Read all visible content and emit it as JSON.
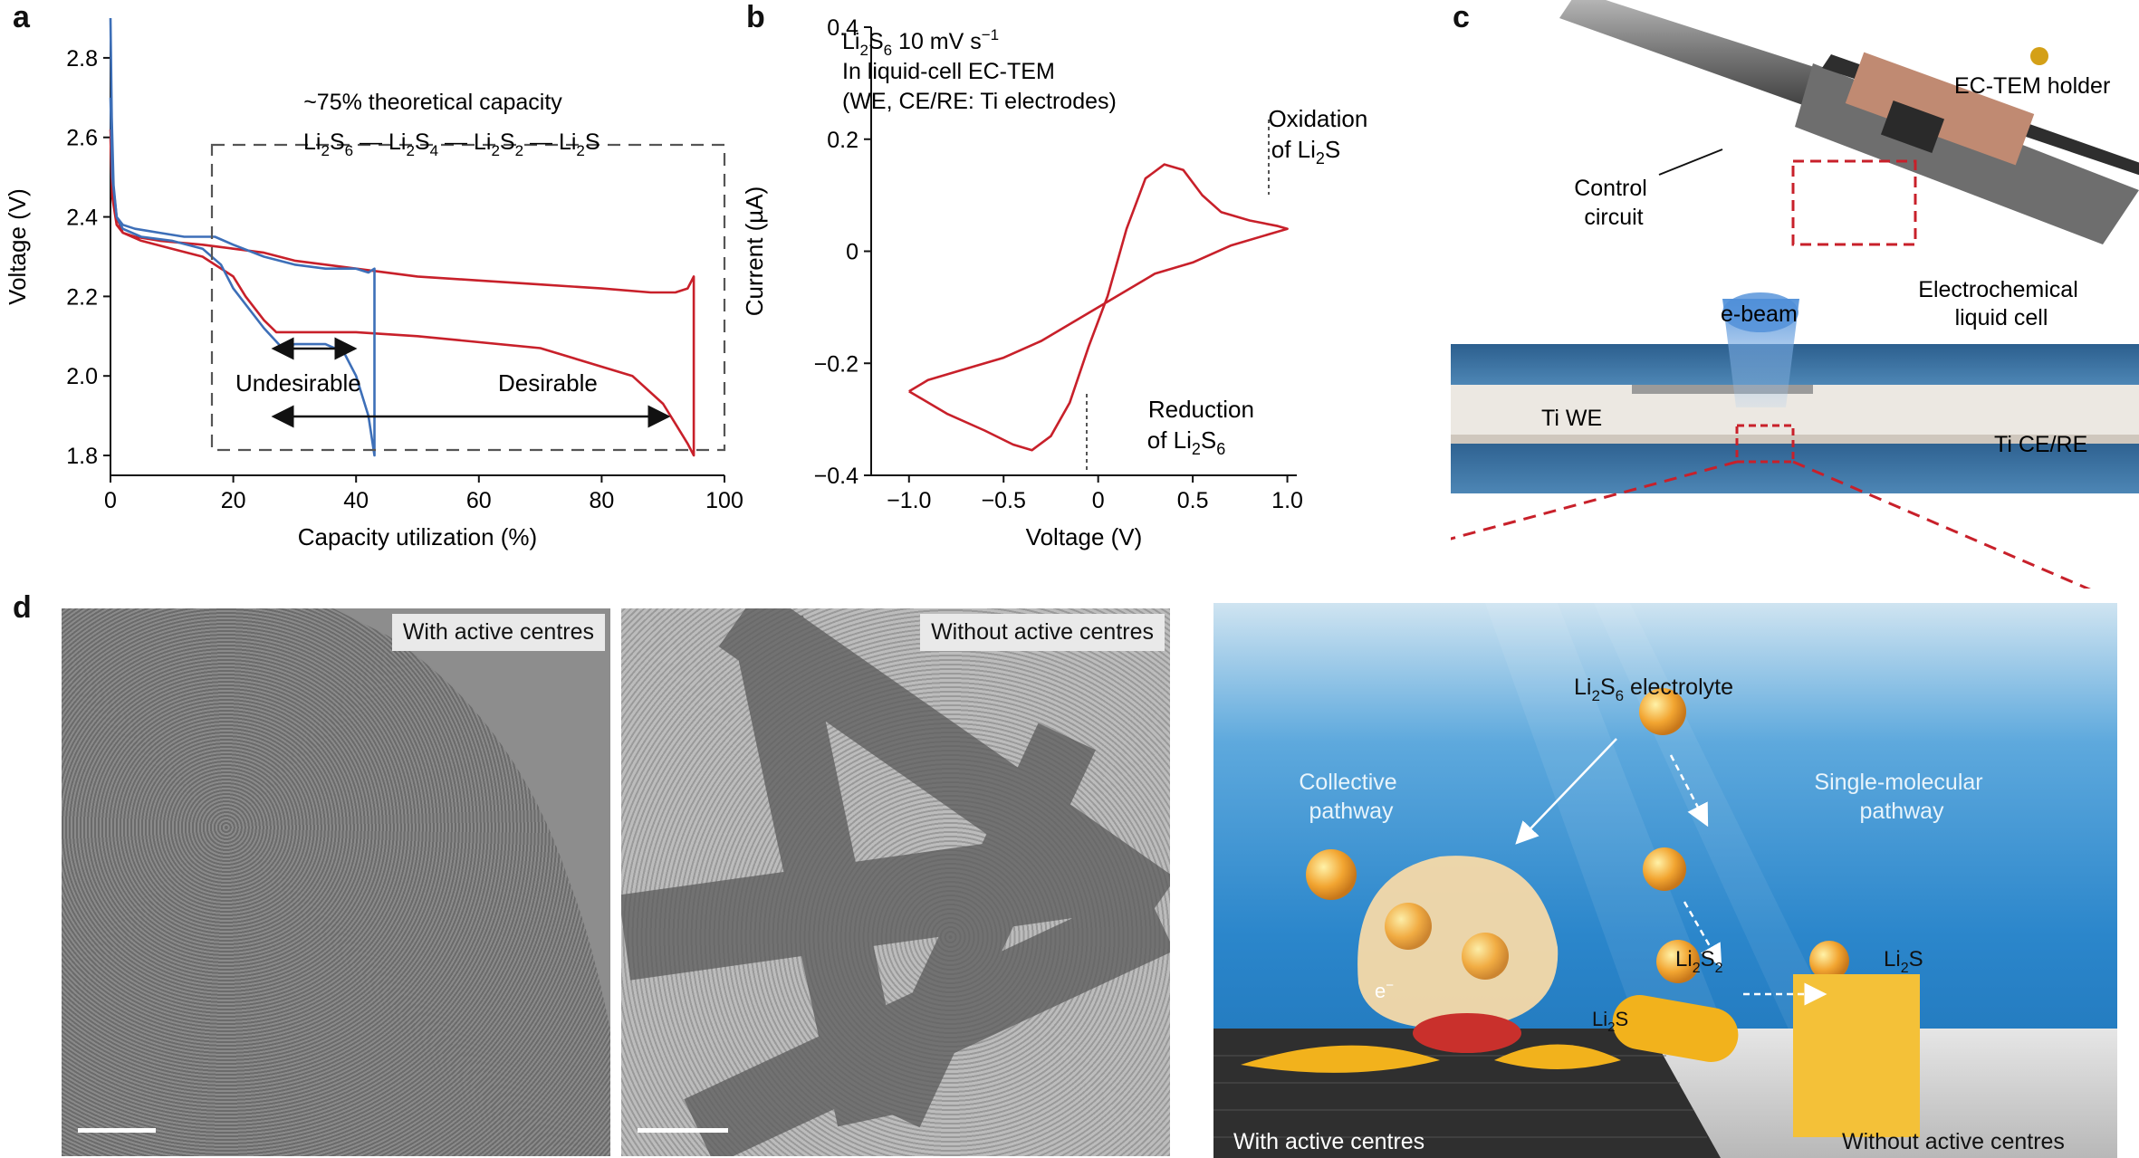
{
  "panels": {
    "a": "a",
    "b": "b",
    "c": "c",
    "d": "d"
  },
  "panel_a": {
    "annotation_capacity": "~75% theoretical capacity",
    "chain": [
      "Li",
      "2",
      "S",
      "6",
      " — Li",
      "2",
      "S",
      "4",
      " — Li",
      "2",
      "S",
      "2",
      " — Li",
      "2",
      "S"
    ],
    "undesirable": "Undesirable",
    "desirable": "Desirable",
    "chart_data": {
      "type": "line",
      "xlabel": "Capacity utilization (%)",
      "ylabel": "Voltage (V)",
      "xlim": [
        0,
        100
      ],
      "ylim": [
        1.75,
        2.9
      ],
      "xticks": [
        0,
        20,
        40,
        60,
        80,
        100
      ],
      "yticks": [
        1.8,
        2.0,
        2.2,
        2.4,
        2.6,
        2.8
      ],
      "series": [
        {
          "color": "#c8202a",
          "x": [
            0,
            0.3,
            1,
            2,
            4,
            8,
            15,
            20,
            25,
            30,
            40,
            50,
            60,
            70,
            80,
            88,
            92,
            94,
            95,
            95,
            94,
            92,
            90,
            85,
            70,
            50,
            40,
            30,
            27,
            25,
            22,
            20,
            15,
            10,
            5,
            2,
            1,
            0.3,
            0
          ],
          "y": [
            2.6,
            2.45,
            2.38,
            2.36,
            2.35,
            2.34,
            2.33,
            2.32,
            2.31,
            2.29,
            2.27,
            2.25,
            2.24,
            2.23,
            2.22,
            2.21,
            2.21,
            2.22,
            2.25,
            1.8,
            1.83,
            1.88,
            1.93,
            2.0,
            2.07,
            2.1,
            2.11,
            2.11,
            2.11,
            2.14,
            2.2,
            2.25,
            2.3,
            2.32,
            2.34,
            2.36,
            2.4,
            2.5,
            2.62
          ]
        },
        {
          "color": "#3d6fb8",
          "x": [
            0,
            0.2,
            0.5,
            1,
            2,
            4,
            8,
            12,
            17,
            20,
            25,
            30,
            35,
            40,
            42,
            43,
            43,
            42,
            40,
            38,
            35,
            30,
            28,
            25,
            20,
            18,
            15,
            10,
            5,
            2,
            1,
            0.3,
            0
          ],
          "y": [
            2.9,
            2.65,
            2.48,
            2.4,
            2.38,
            2.37,
            2.36,
            2.35,
            2.35,
            2.33,
            2.3,
            2.28,
            2.27,
            2.27,
            2.26,
            2.27,
            1.8,
            1.9,
            2.0,
            2.06,
            2.08,
            2.08,
            2.07,
            2.12,
            2.22,
            2.28,
            2.32,
            2.34,
            2.35,
            2.37,
            2.4,
            2.5,
            2.7
          ]
        }
      ]
    }
  },
  "panel_b": {
    "conditions": {
      "line1": [
        "Li",
        "2",
        "S",
        "6",
        " 10 mV s",
        "−1"
      ],
      "line2": "In liquid-cell EC-TEM",
      "line3": "(WE, CE/RE: Ti electrodes)"
    },
    "oxidation": [
      "Oxidation",
      "of Li",
      "2",
      "S"
    ],
    "reduction": [
      "Reduction",
      "of Li",
      "2",
      "S",
      "6"
    ],
    "chart_data": {
      "type": "line",
      "xlabel": "Voltage (V)",
      "ylabel": "Current (µA)",
      "xlim": [
        -1.2,
        1.05
      ],
      "ylim": [
        -0.4,
        0.4
      ],
      "xticks": [
        -1.0,
        -0.5,
        0,
        0.5,
        1.0
      ],
      "xtick_labels": [
        "−1.0",
        "−0.5",
        "0",
        "0.5",
        "1.0"
      ],
      "yticks": [
        -0.4,
        -0.2,
        0,
        0.2,
        0.4
      ],
      "ytick_labels": [
        "−0.4",
        "−0.2",
        "0",
        "0.2",
        "0.4"
      ],
      "series": [
        {
          "color": "#c8202a",
          "x": [
            -1.0,
            -0.8,
            -0.6,
            -0.45,
            -0.35,
            -0.25,
            -0.15,
            -0.05,
            0.05,
            0.15,
            0.25,
            0.35,
            0.45,
            0.55,
            0.65,
            0.8,
            0.95,
            1.0,
            0.9,
            0.7,
            0.5,
            0.3,
            0.1,
            0,
            -0.1,
            -0.3,
            -0.5,
            -0.7,
            -0.9,
            -1.0
          ],
          "y": [
            -0.25,
            -0.29,
            -0.32,
            -0.345,
            -0.355,
            -0.33,
            -0.27,
            -0.17,
            -0.08,
            0.04,
            0.13,
            0.155,
            0.145,
            0.1,
            0.07,
            0.055,
            0.045,
            0.04,
            0.03,
            0.01,
            -0.02,
            -0.04,
            -0.08,
            -0.1,
            -0.12,
            -0.16,
            -0.19,
            -0.21,
            -0.23,
            -0.25
          ]
        }
      ]
    }
  },
  "panel_c": {
    "holder_label": "EC-TEM holder",
    "control_circuit": [
      "Control",
      "circuit"
    ],
    "ebeam": "e-beam",
    "liquid_cell": [
      "Electrochemical",
      "liquid cell"
    ],
    "we": "Ti WE",
    "ce": "Ti CE/RE"
  },
  "panel_d": {
    "tem_left": "With active centres",
    "tem_right": "Without active centres",
    "electrolyte": [
      "Li",
      "2",
      "S",
      "6",
      " electrolyte"
    ],
    "collective": [
      "Collective",
      "pathway"
    ],
    "single": [
      "Single-molecular",
      "pathway"
    ],
    "li2s2": [
      "Li",
      "2",
      "S",
      "2"
    ],
    "li2s_right": [
      "Li",
      "2",
      "S"
    ],
    "li2s_left": [
      "Li",
      "2",
      "S"
    ],
    "electron": [
      "e",
      "−"
    ],
    "bottom_left": "With active centres",
    "bottom_right": "Without active centres"
  }
}
